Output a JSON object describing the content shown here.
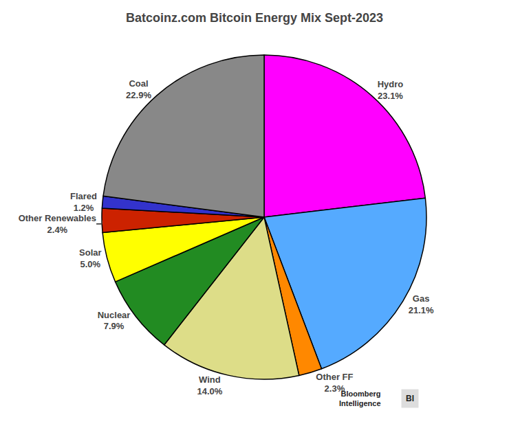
{
  "chart_data": {
    "type": "pie",
    "title": "Batcoinz.com Bitcoin Energy Mix Sept-2023",
    "categories": [
      "Hydro",
      "Gas",
      "Other FF",
      "Wind",
      "Nuclear",
      "Solar",
      "Other Renewables",
      "Flared",
      "Coal"
    ],
    "values": [
      23.1,
      21.1,
      2.3,
      14.0,
      7.9,
      5.0,
      2.4,
      1.2,
      22.9
    ],
    "value_labels": [
      "23.1%",
      "21.1%",
      "2.3%",
      "14.0%",
      "7.9%",
      "5.0%",
      "2.4%",
      "1.2%",
      "22.9%"
    ],
    "colors": [
      "#FF00FF",
      "#55AAFF",
      "#FF8800",
      "#DDDD88",
      "#228B22",
      "#FFFF00",
      "#CC2200",
      "#3333CC",
      "#888888"
    ],
    "data_labels": true,
    "annotations": [
      "Bloomberg\nIntelligence",
      "BI"
    ]
  }
}
